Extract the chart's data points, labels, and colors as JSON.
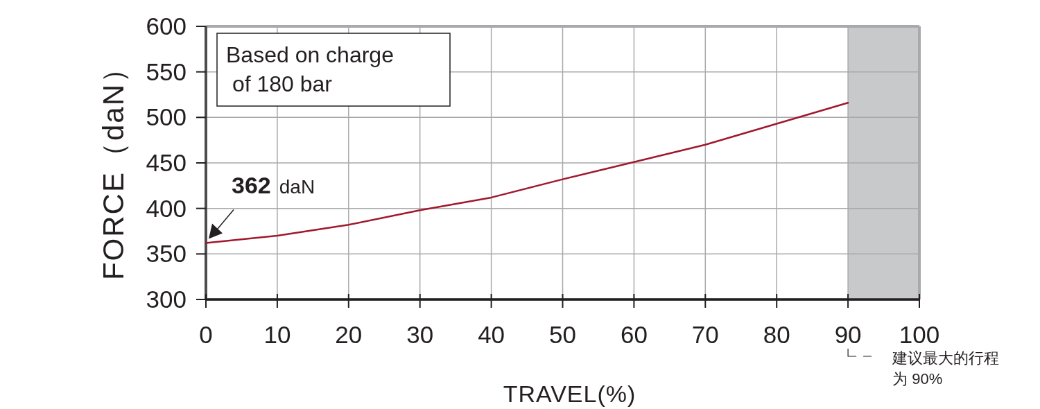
{
  "chart_data": {
    "type": "line",
    "xlabel": "TRAVEL(%)",
    "ylabel": "FORCE（daN）",
    "x": [
      0,
      10,
      20,
      30,
      40,
      50,
      60,
      70,
      80,
      90
    ],
    "series": [
      {
        "color": "#a0182d",
        "values": [
          362,
          370,
          382,
          398,
          412,
          432,
          451,
          470,
          493,
          516
        ]
      }
    ],
    "xlim": [
      0,
      100
    ],
    "xticks": [
      0,
      10,
      20,
      30,
      40,
      50,
      60,
      70,
      80,
      90,
      100
    ],
    "ylim": [
      300,
      600
    ],
    "yticks": [
      300,
      350,
      400,
      450,
      500,
      550,
      600
    ],
    "grid": true,
    "marker": "none",
    "line_style": "solid",
    "bands": [
      {
        "axis": "x",
        "from": 90,
        "to": 100,
        "color": "#c8c9cb"
      }
    ],
    "annotations": [
      "Based on charge\n of 180 bar",
      {
        "text": "362 daN",
        "x": 0,
        "y": 362
      },
      "建议最大的行程为 90%"
    ]
  }
}
